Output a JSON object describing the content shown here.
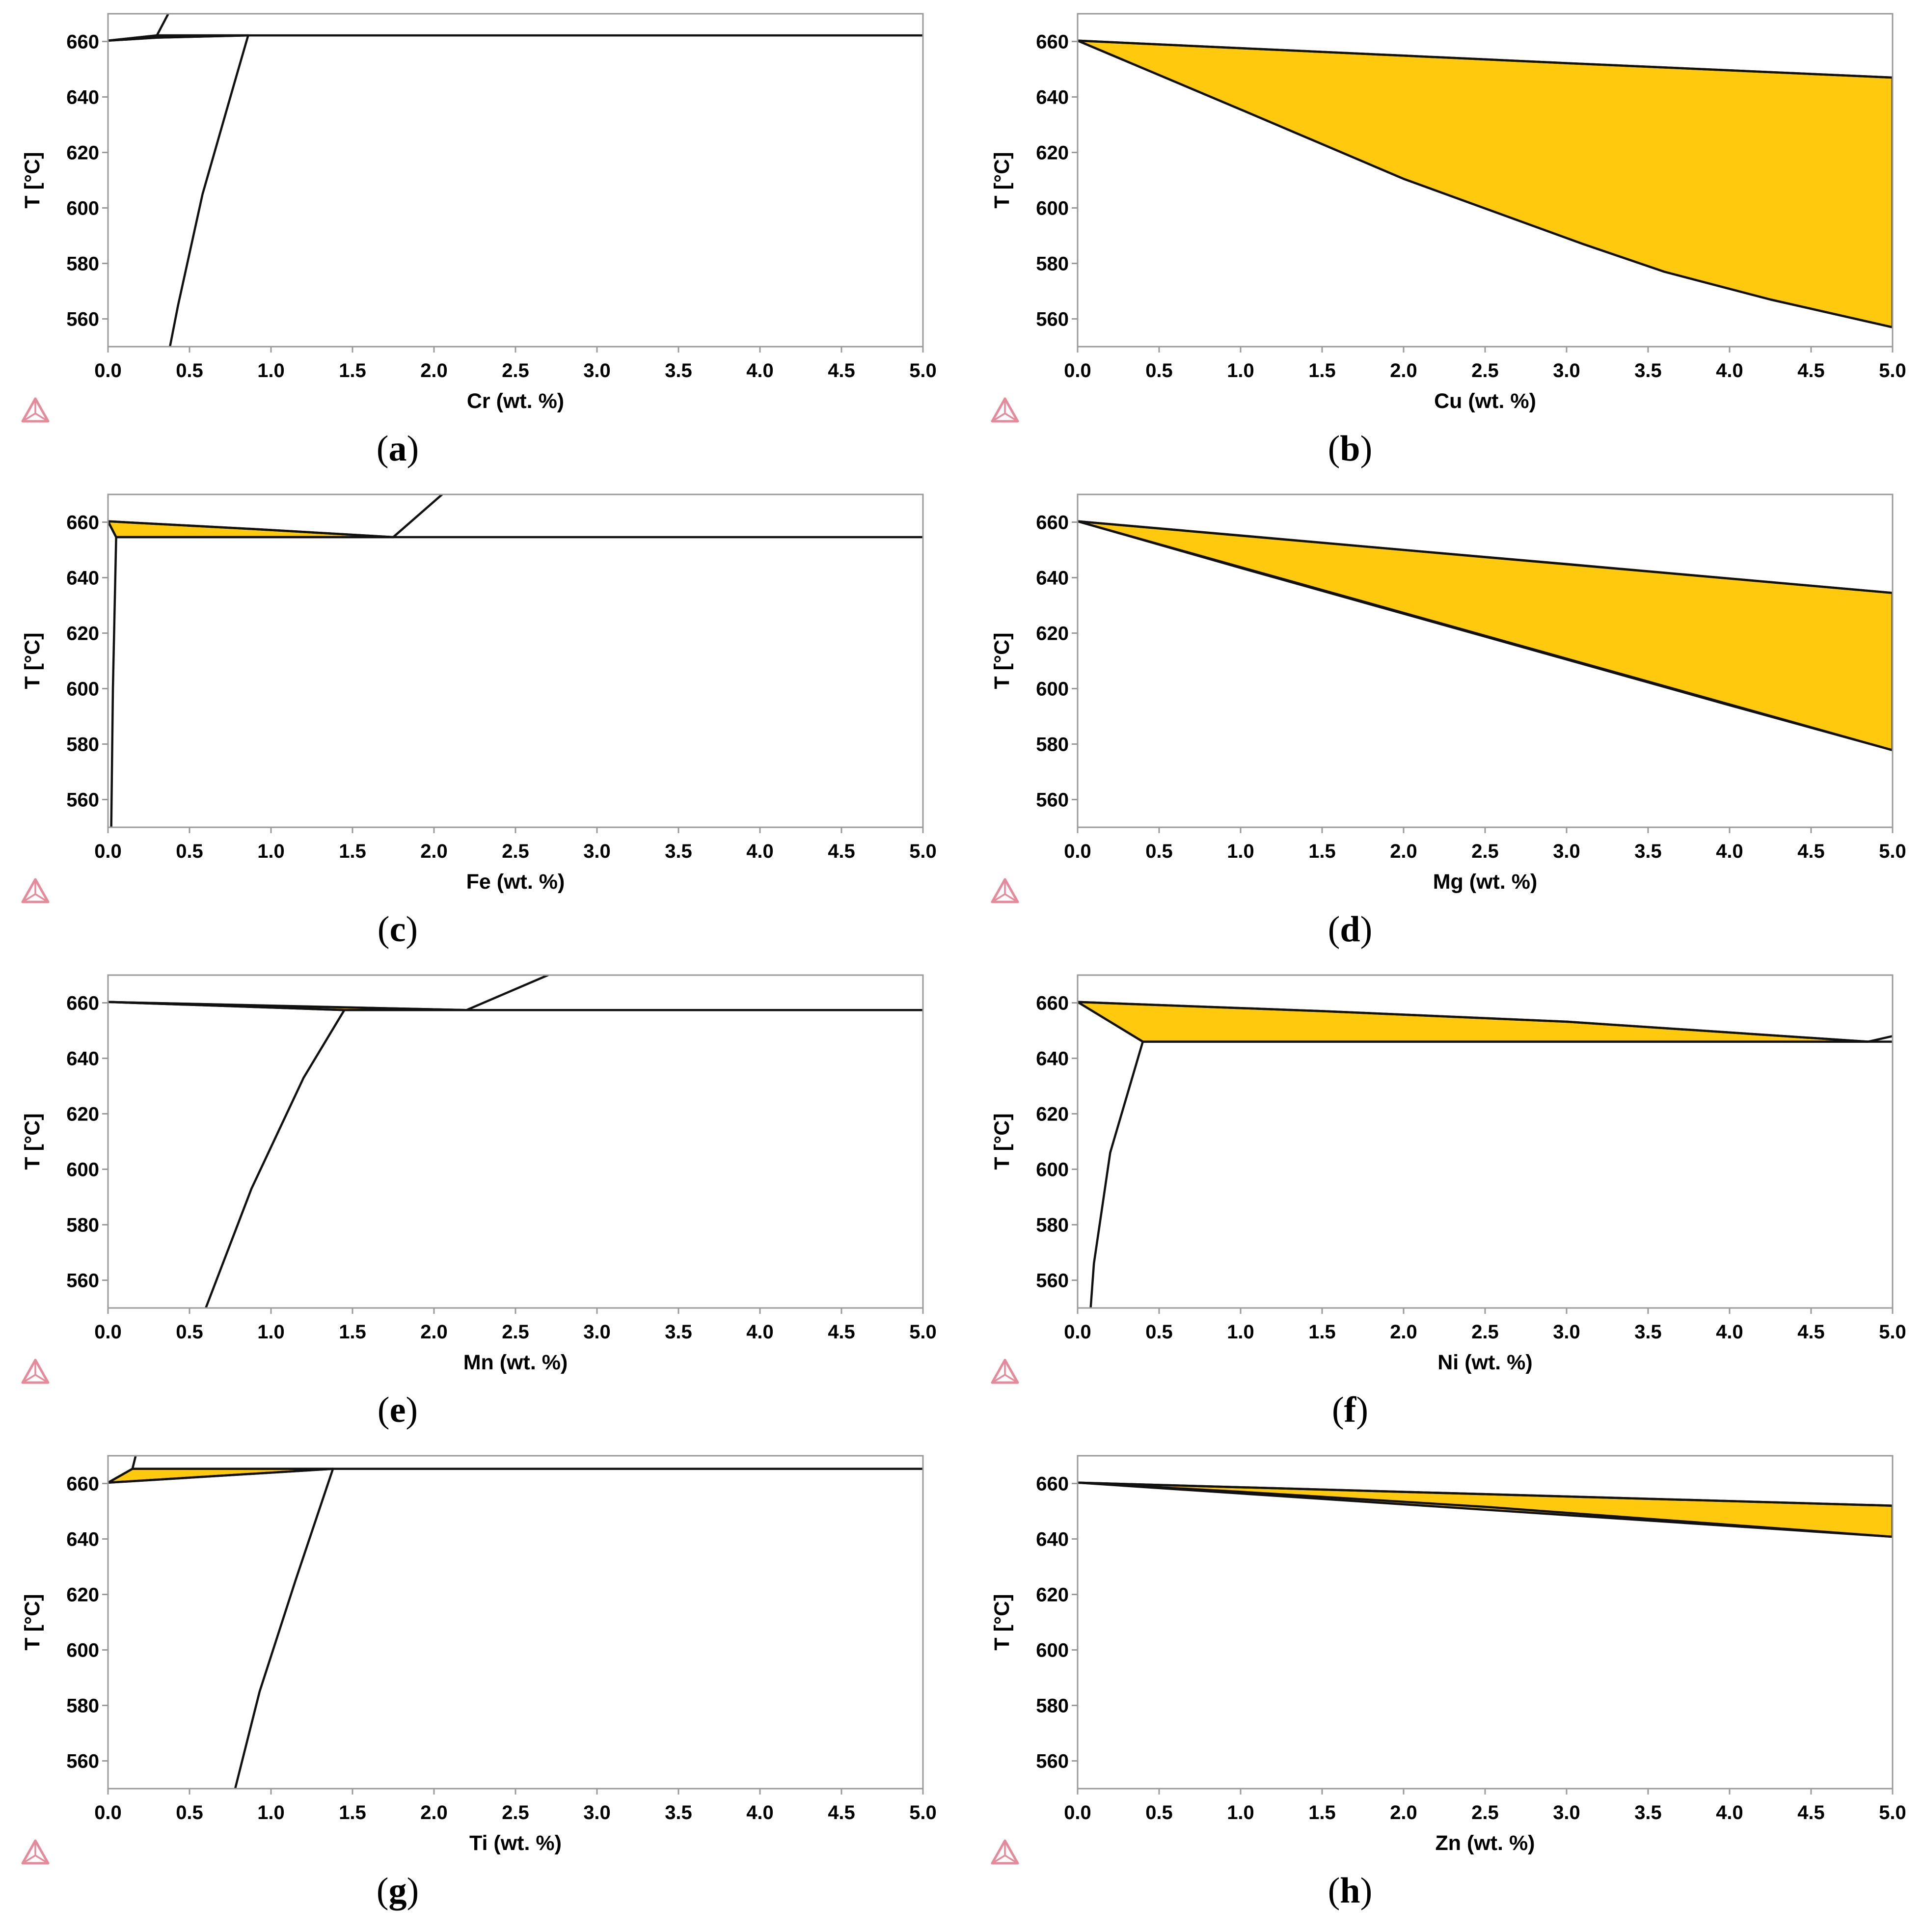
{
  "figure": {
    "fill_color": "#FFC90E",
    "line_color": "#111111",
    "logo_icon": "thermo-calc-triangle-icon"
  },
  "chart_data": [
    {
      "type": "area",
      "caption_letter": "a",
      "xlabel": "Cr (wt. %)",
      "ylabel": "T [°C]",
      "xlim": [
        0,
        5
      ],
      "ylim": [
        550,
        670
      ],
      "xticks": [
        "0.0",
        "0.5",
        "1.0",
        "1.5",
        "2.0",
        "2.5",
        "3.0",
        "3.5",
        "4.0",
        "4.5",
        "5.0"
      ],
      "yticks": [
        "560",
        "580",
        "600",
        "620",
        "640",
        "660"
      ],
      "grid": false,
      "regions": [
        {
          "points": [
            [
              0,
              660.3
            ],
            [
              0.3,
              662.2
            ],
            [
              0.86,
              662.2
            ],
            [
              0.3,
              661.4
            ]
          ]
        }
      ],
      "lines": [
        [
          [
            0,
            660.3
          ],
          [
            0.3,
            662.2
          ],
          [
            0.86,
            662.2
          ],
          [
            5,
            662.2
          ]
        ],
        [
          [
            0,
            660.3
          ],
          [
            0.3,
            661.4
          ],
          [
            0.86,
            662.2
          ]
        ],
        [
          [
            0.3,
            662.2
          ],
          [
            0.37,
            670
          ]
        ],
        [
          [
            0.86,
            662.2
          ],
          [
            0.78,
            646
          ],
          [
            0.58,
            605
          ],
          [
            0.43,
            565
          ],
          [
            0.38,
            550
          ]
        ]
      ]
    },
    {
      "type": "area",
      "caption_letter": "b",
      "xlabel": "Cu (wt. %)",
      "ylabel": "T [°C]",
      "xlim": [
        0,
        5
      ],
      "ylim": [
        550,
        670
      ],
      "xticks": [
        "0.0",
        "0.5",
        "1.0",
        "1.5",
        "2.0",
        "2.5",
        "3.0",
        "3.5",
        "4.0",
        "4.5",
        "5.0"
      ],
      "yticks": [
        "560",
        "580",
        "600",
        "620",
        "640",
        "660"
      ],
      "grid": false,
      "regions": [
        {
          "points": [
            [
              0,
              660.3
            ],
            [
              1,
              657.6
            ],
            [
              2,
              654.9
            ],
            [
              3,
              652.2
            ],
            [
              4,
              649.6
            ],
            [
              5,
              647.0
            ],
            [
              5,
              557.0
            ],
            [
              4.25,
              567.0
            ],
            [
              3.6,
              577.0
            ],
            [
              3.1,
              587.0
            ],
            [
              2.0,
              610.5
            ],
            [
              1.0,
              635.5
            ],
            [
              0,
              660.3
            ]
          ]
        }
      ],
      "lines": [
        [
          [
            0,
            660.3
          ],
          [
            1,
            657.6
          ],
          [
            2,
            654.9
          ],
          [
            3,
            652.2
          ],
          [
            4,
            649.6
          ],
          [
            5,
            647.0
          ]
        ],
        [
          [
            0,
            660.3
          ],
          [
            1.0,
            635.5
          ],
          [
            2.0,
            610.5
          ],
          [
            3.1,
            587.0
          ],
          [
            3.6,
            577.0
          ],
          [
            4.25,
            567.0
          ],
          [
            5,
            557.0
          ]
        ],
        [
          [
            5,
            647.0
          ],
          [
            5,
            557.0
          ]
        ]
      ]
    },
    {
      "type": "area",
      "caption_letter": "c",
      "xlabel": "Fe (wt. %)",
      "ylabel": "T [°C]",
      "xlim": [
        0,
        5
      ],
      "ylim": [
        550,
        670
      ],
      "xticks": [
        "0.0",
        "0.5",
        "1.0",
        "1.5",
        "2.0",
        "2.5",
        "3.0",
        "3.5",
        "4.0",
        "4.5",
        "5.0"
      ],
      "yticks": [
        "560",
        "580",
        "600",
        "620",
        "640",
        "660"
      ],
      "grid": false,
      "regions": [
        {
          "points": [
            [
              0,
              660.3
            ],
            [
              0.9,
              657.5
            ],
            [
              1.75,
              654.6
            ],
            [
              0.05,
              654.6
            ],
            [
              0,
              660.3
            ]
          ]
        }
      ],
      "lines": [
        [
          [
            0,
            660.3
          ],
          [
            0.9,
            657.5
          ],
          [
            1.75,
            654.6
          ]
        ],
        [
          [
            0,
            660.3
          ],
          [
            0.05,
            654.6
          ],
          [
            5,
            654.6
          ]
        ],
        [
          [
            1.75,
            654.6
          ],
          [
            2.05,
            670
          ]
        ],
        [
          [
            0.05,
            654.6
          ],
          [
            0.03,
            600
          ],
          [
            0.02,
            550
          ]
        ]
      ]
    },
    {
      "type": "area",
      "caption_letter": "d",
      "xlabel": "Mg (wt. %)",
      "ylabel": "T [°C]",
      "xlim": [
        0,
        5
      ],
      "ylim": [
        550,
        670
      ],
      "xticks": [
        "0.0",
        "0.5",
        "1.0",
        "1.5",
        "2.0",
        "2.5",
        "3.0",
        "3.5",
        "4.0",
        "4.5",
        "5.0"
      ],
      "yticks": [
        "560",
        "580",
        "600",
        "620",
        "640",
        "660"
      ],
      "grid": false,
      "regions": [
        {
          "points": [
            [
              0,
              660.3
            ],
            [
              5,
              634.5
            ],
            [
              5,
              577.8
            ],
            [
              0,
              660.3
            ]
          ]
        }
      ],
      "lines": [
        [
          [
            0,
            660.3
          ],
          [
            1,
            655.2
          ],
          [
            2,
            650.0
          ],
          [
            3,
            644.9
          ],
          [
            4,
            639.7
          ],
          [
            5,
            634.5
          ]
        ],
        [
          [
            0,
            660.3
          ],
          [
            1,
            643.5
          ],
          [
            2,
            627.0
          ],
          [
            3,
            610.5
          ],
          [
            4,
            594.0
          ],
          [
            5,
            577.8
          ]
        ],
        [
          [
            5,
            634.5
          ],
          [
            5,
            577.8
          ]
        ]
      ]
    },
    {
      "type": "area",
      "caption_letter": "e",
      "xlabel": "Mn (wt. %)",
      "ylabel": "T [°C]",
      "xlim": [
        0,
        5
      ],
      "ylim": [
        550,
        670
      ],
      "xticks": [
        "0.0",
        "0.5",
        "1.0",
        "1.5",
        "2.0",
        "2.5",
        "3.0",
        "3.5",
        "4.0",
        "4.5",
        "5.0"
      ],
      "yticks": [
        "560",
        "580",
        "600",
        "620",
        "640",
        "660"
      ],
      "grid": false,
      "regions": [
        {
          "points": [
            [
              0,
              660.3
            ],
            [
              1.45,
              657.4
            ],
            [
              2.2,
              657.4
            ],
            [
              0,
              660.3
            ]
          ]
        }
      ],
      "lines": [
        [
          [
            0,
            660.3
          ],
          [
            1.45,
            657.4
          ],
          [
            5,
            657.4
          ]
        ],
        [
          [
            0,
            660.3
          ],
          [
            1.1,
            658.8
          ],
          [
            2.2,
            657.4
          ]
        ],
        [
          [
            2.2,
            657.4
          ],
          [
            2.7,
            670
          ]
        ],
        [
          [
            1.45,
            657.4
          ],
          [
            1.2,
            633
          ],
          [
            0.88,
            593
          ],
          [
            0.6,
            550
          ]
        ]
      ]
    },
    {
      "type": "area",
      "caption_letter": "f",
      "xlabel": "Ni (wt. %)",
      "ylabel": "T [°C]",
      "xlim": [
        0,
        5
      ],
      "ylim": [
        550,
        670
      ],
      "xticks": [
        "0.0",
        "0.5",
        "1.0",
        "1.5",
        "2.0",
        "2.5",
        "3.0",
        "3.5",
        "4.0",
        "4.5",
        "5.0"
      ],
      "yticks": [
        "560",
        "580",
        "600",
        "620",
        "640",
        "660"
      ],
      "grid": false,
      "regions": [
        {
          "points": [
            [
              0,
              660.3
            ],
            [
              1.5,
              657.0
            ],
            [
              3,
              653.2
            ],
            [
              4.85,
              646.0
            ],
            [
              0.4,
              646.0
            ],
            [
              0,
              660.3
            ]
          ]
        }
      ],
      "lines": [
        [
          [
            0,
            660.3
          ],
          [
            1.5,
            657.0
          ],
          [
            3,
            653.2
          ],
          [
            4.85,
            646.0
          ],
          [
            5,
            648.0
          ]
        ],
        [
          [
            0,
            660.3
          ],
          [
            0.4,
            646.0
          ],
          [
            5,
            646.0
          ]
        ],
        [
          [
            0.4,
            646.0
          ],
          [
            0.2,
            606
          ],
          [
            0.1,
            566
          ],
          [
            0.08,
            550
          ]
        ]
      ]
    },
    {
      "type": "area",
      "caption_letter": "g",
      "xlabel": "Ti (wt. %)",
      "ylabel": "T [°C]",
      "xlim": [
        0,
        5
      ],
      "ylim": [
        550,
        670
      ],
      "xticks": [
        "0.0",
        "0.5",
        "1.0",
        "1.5",
        "2.0",
        "2.5",
        "3.0",
        "3.5",
        "4.0",
        "4.5",
        "5.0"
      ],
      "yticks": [
        "560",
        "580",
        "600",
        "620",
        "640",
        "660"
      ],
      "grid": false,
      "regions": [
        {
          "points": [
            [
              0,
              660.3
            ],
            [
              0.15,
              665.3
            ],
            [
              1.38,
              665.3
            ],
            [
              0,
              660.3
            ]
          ]
        }
      ],
      "lines": [
        [
          [
            0,
            660.3
          ],
          [
            0.15,
            665.3
          ],
          [
            5,
            665.3
          ]
        ],
        [
          [
            0,
            660.3
          ],
          [
            1.38,
            665.3
          ]
        ],
        [
          [
            0.15,
            665.3
          ],
          [
            0.17,
            670
          ]
        ],
        [
          [
            1.38,
            665.3
          ],
          [
            1.15,
            625
          ],
          [
            0.93,
            585
          ],
          [
            0.78,
            550
          ]
        ]
      ]
    },
    {
      "type": "area",
      "caption_letter": "h",
      "xlabel": "Zn (wt. %)",
      "ylabel": "T [°C]",
      "xlim": [
        0,
        5
      ],
      "ylim": [
        550,
        670
      ],
      "xticks": [
        "0.0",
        "0.5",
        "1.0",
        "1.5",
        "2.0",
        "2.5",
        "3.0",
        "3.5",
        "4.0",
        "4.5",
        "5.0"
      ],
      "yticks": [
        "560",
        "580",
        "600",
        "620",
        "640",
        "660"
      ],
      "grid": false,
      "regions": [
        {
          "points": [
            [
              0,
              660.3
            ],
            [
              5,
              652.0
            ],
            [
              5,
              640.8
            ],
            [
              0,
              660.3
            ]
          ]
        }
      ],
      "lines": [
        [
          [
            0,
            660.3
          ],
          [
            5,
            652.0
          ]
        ],
        [
          [
            0,
            660.3
          ],
          [
            1,
            657.0
          ],
          [
            2.5,
            651.6
          ],
          [
            5,
            640.8
          ]
        ],
        [
          [
            5,
            652.0
          ],
          [
            5,
            640.8
          ]
        ]
      ]
    }
  ]
}
